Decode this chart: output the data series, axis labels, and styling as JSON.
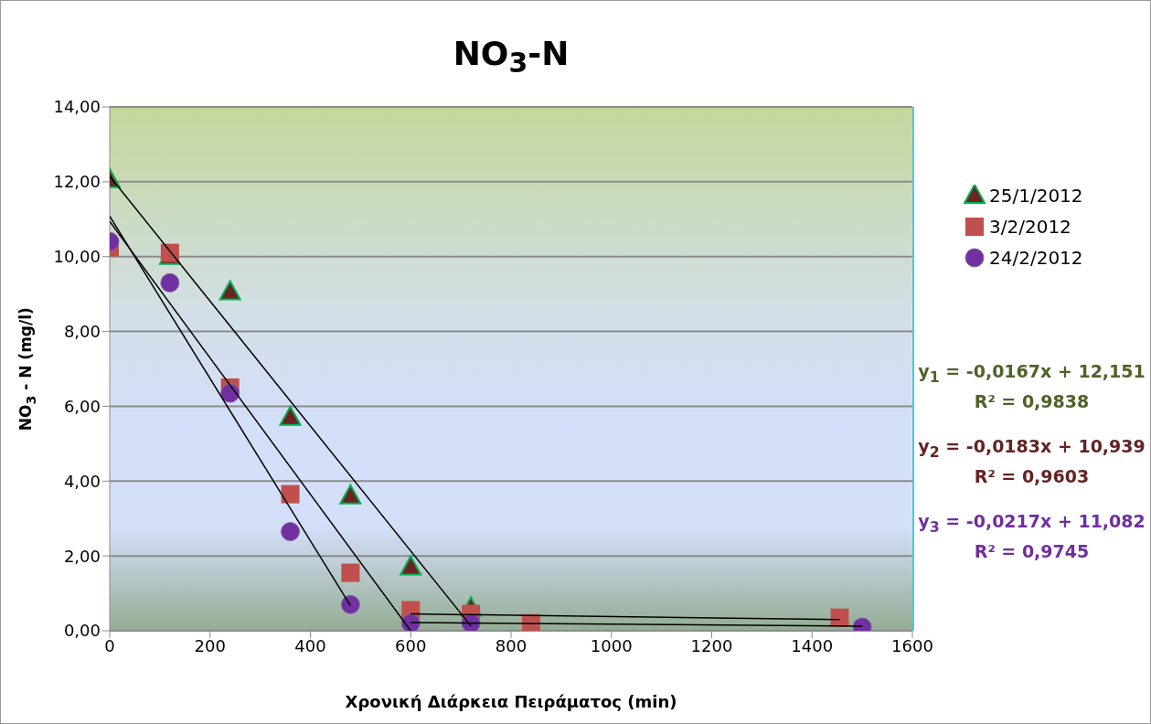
{
  "chart_data": {
    "type": "scatter",
    "title": "NO$_{3}$-N",
    "xlabel": "Χρονική Διάρκεια Πειράματος (min)",
    "ylabel": "NO$_{3}$ - N (mg/l)",
    "series": [
      {
        "name": "25/1/2012",
        "color": "#6b2323",
        "marker": "triangle",
        "x": [
          0,
          120,
          240,
          360,
          480,
          600,
          720
        ],
        "values": [
          12.05,
          10.0,
          9.05,
          5.7,
          3.6,
          1.7,
          0.6
        ]
      },
      {
        "name": "3/2/2012",
        "color": "#c0504d",
        "marker": "square",
        "x": [
          0,
          120,
          240,
          360,
          480,
          600,
          720,
          840,
          1455
        ],
        "values": [
          10.25,
          10.1,
          6.5,
          3.65,
          1.55,
          0.55,
          0.45,
          0.2,
          0.35
        ]
      },
      {
        "name": "24/2/2012",
        "color": "#7030a0",
        "marker": "circle",
        "x": [
          0,
          120,
          240,
          360,
          480,
          600,
          720,
          1500
        ],
        "values": [
          10.4,
          9.3,
          6.35,
          2.65,
          0.7,
          0.2,
          0.2,
          0.1
        ]
      },
      {
        "type": "line",
        "color": "#000000",
        "x": [
          0,
          720
        ],
        "values": [
          12.15,
          0.13
        ]
      },
      {
        "type": "line",
        "color": "#000000",
        "x": [
          0,
          600
        ],
        "values": [
          10.94,
          0.0
        ]
      },
      {
        "type": "line",
        "color": "#000000",
        "x": [
          0,
          480
        ],
        "values": [
          11.08,
          0.67
        ]
      },
      {
        "type": "line",
        "color": "#000000",
        "x": [
          600,
          1455
        ],
        "values": [
          0.45,
          0.3
        ]
      },
      {
        "type": "line",
        "color": "#000000",
        "x": [
          600,
          1500
        ],
        "values": [
          0.22,
          0.12
        ]
      }
    ],
    "annotations": [
      "y$_{1}$ = -0,0167x + 12,151",
      "R² = 0,9838",
      "y$_{2}$ = -0,0183x + 10,939",
      "R² = 0,9603",
      "y$_{3}$ = -0,0217x + 11,082",
      "R² = 0,9745"
    ],
    "xlim": [
      0,
      1600
    ],
    "xticks": [
      0,
      200,
      400,
      600,
      800,
      1000,
      1200,
      1400,
      1600
    ],
    "ylim": [
      0,
      14
    ],
    "yticks": [
      {
        "value": 0,
        "label": "0,00"
      },
      {
        "value": 2,
        "label": "2,00"
      },
      {
        "value": 4,
        "label": "4,00"
      },
      {
        "value": 6,
        "label": "6,00"
      },
      {
        "value": 8,
        "label": "8,00"
      },
      {
        "value": 10,
        "label": "10,00"
      },
      {
        "value": 12,
        "label": "12,00"
      },
      {
        "value": 14,
        "label": "14,00"
      }
    ],
    "grid": "y",
    "legend": "right"
  }
}
